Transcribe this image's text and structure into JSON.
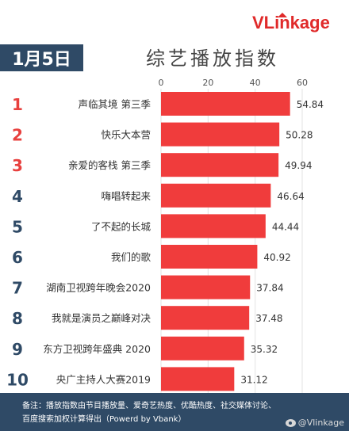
{
  "brand": {
    "logo_text": "VLinkage",
    "logo_color": "#e02a2a"
  },
  "header": {
    "date": "1月5日",
    "title": "综艺播放指数"
  },
  "chart_data": {
    "type": "bar",
    "orientation": "horizontal",
    "title": "综艺播放指数",
    "xlim": [
      0,
      60
    ],
    "ticks": [
      0,
      20,
      40,
      60
    ],
    "grid": true,
    "bar_color": "#f03c3c",
    "rank_colors": {
      "top3": "#e8403e",
      "others": "#2f4a66"
    },
    "categories": [
      "声临其境 第三季",
      "快乐大本营",
      "亲爱的客栈 第三季",
      "嗨唱转起来",
      "了不起的长城",
      "我们的歌",
      "湖南卫视跨年晚会2020",
      "我就是演员之巅峰对决",
      "东方卫视跨年盛典 2020",
      "央广主持人大赛2019"
    ],
    "ranks": [
      "1",
      "2",
      "3",
      "4",
      "5",
      "6",
      "7",
      "8",
      "9",
      "10"
    ],
    "values": [
      54.84,
      50.28,
      49.94,
      46.64,
      44.44,
      40.92,
      37.84,
      37.48,
      35.32,
      31.12
    ],
    "value_labels": [
      "54.84",
      "50.28",
      "49.94",
      "46.64",
      "44.44",
      "40.92",
      "37.84",
      "37.48",
      "35.32",
      "31.12"
    ]
  },
  "footer": {
    "note_line1": "备注：播放指数由节目播放量、爱奇艺热度、优酷热度、社交媒体讨论、",
    "note_line2": "百度搜索加权计算得出（Powerd by Vbank）",
    "watermark": "@Vlinkage"
  }
}
